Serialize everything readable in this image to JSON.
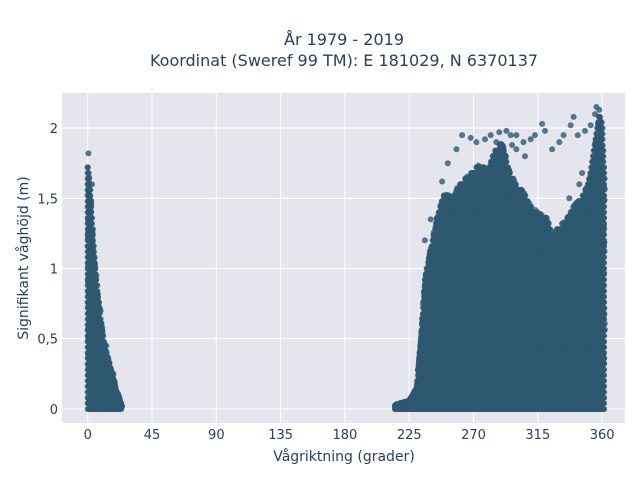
{
  "chart_data": {
    "type": "scatter",
    "title_line1": "År 1979 - 2019",
    "title_line2": "Koordinat (Sweref 99 TM): E 181029, N 6370137",
    "xlabel": "Vågriktning (grader)",
    "ylabel": "Signifikant våghöjd (m)",
    "xlim": [
      -18,
      376
    ],
    "ylim": [
      -0.1,
      2.25
    ],
    "xticks": [
      0,
      45,
      90,
      135,
      180,
      225,
      270,
      315,
      360
    ],
    "xtick_labels": [
      "0",
      "45",
      "90",
      "135",
      "180",
      "225",
      "270",
      "315",
      "360"
    ],
    "yticks": [
      0,
      0.5,
      1,
      1.5,
      2
    ],
    "ytick_labels": [
      "0",
      "0,5",
      "1",
      "1,5",
      "2"
    ],
    "grid": true,
    "marker_color": "#2e5870",
    "plot_bg": "#e5e5ee",
    "clusters": [
      {
        "name": "",
        "x_range": [
          0,
          24
        ],
        "envelope": [
          [
            0,
            1.75
          ],
          [
            2,
            1.55
          ],
          [
            5,
            1.05
          ],
          [
            8,
            0.75
          ],
          [
            12,
            0.45
          ],
          [
            16,
            0.3
          ],
          [
            20,
            0.15
          ],
          [
            24,
            0.02
          ]
        ],
        "outliers": [
          [
            0.5,
            1.82
          ],
          [
            0,
            1.72
          ],
          [
            1,
            1.65
          ],
          [
            3,
            1.6
          ],
          [
            2,
            1.48
          ],
          [
            6,
            0.95
          ],
          [
            9,
            0.7
          ],
          [
            13,
            0.45
          ],
          [
            18,
            0.25
          ]
        ]
      },
      {
        "name": "",
        "x_range": [
          215,
          362
        ],
        "envelope": [
          [
            215,
            0.03
          ],
          [
            225,
            0.06
          ],
          [
            230,
            0.15
          ],
          [
            233,
            0.5
          ],
          [
            236,
            0.95
          ],
          [
            240,
            1.15
          ],
          [
            245,
            1.4
          ],
          [
            250,
            1.55
          ],
          [
            255,
            1.5
          ],
          [
            260,
            1.6
          ],
          [
            265,
            1.65
          ],
          [
            270,
            1.7
          ],
          [
            275,
            1.75
          ],
          [
            280,
            1.7
          ],
          [
            285,
            1.85
          ],
          [
            290,
            1.9
          ],
          [
            295,
            1.7
          ],
          [
            300,
            1.6
          ],
          [
            305,
            1.55
          ],
          [
            310,
            1.45
          ],
          [
            315,
            1.4
          ],
          [
            320,
            1.4
          ],
          [
            325,
            1.25
          ],
          [
            330,
            1.3
          ],
          [
            335,
            1.35
          ],
          [
            340,
            1.45
          ],
          [
            345,
            1.5
          ],
          [
            350,
            1.6
          ],
          [
            355,
            1.9
          ],
          [
            358,
            2.1
          ],
          [
            360,
            2.05
          ],
          [
            362,
            1.6
          ]
        ],
        "outliers": [
          [
            262,
            1.95
          ],
          [
            268,
            1.93
          ],
          [
            272,
            1.9
          ],
          [
            278,
            1.92
          ],
          [
            282,
            1.95
          ],
          [
            288,
            1.97
          ],
          [
            293,
            1.98
          ],
          [
            297,
            1.88
          ],
          [
            300,
            1.95
          ],
          [
            305,
            1.9
          ],
          [
            310,
            1.92
          ],
          [
            313,
            1.95
          ],
          [
            318,
            2.03
          ],
          [
            320,
            1.98
          ],
          [
            325,
            1.85
          ],
          [
            330,
            1.9
          ],
          [
            333,
            1.95
          ],
          [
            338,
            2.02
          ],
          [
            340,
            2.08
          ],
          [
            343,
            1.95
          ],
          [
            348,
            1.98
          ],
          [
            352,
            2.02
          ],
          [
            355,
            2.1
          ],
          [
            356,
            2.15
          ],
          [
            358,
            2.13
          ],
          [
            359,
            2.05
          ],
          [
            252,
            1.75
          ],
          [
            258,
            1.85
          ],
          [
            248,
            1.62
          ],
          [
            240,
            1.35
          ],
          [
            236,
            1.2
          ],
          [
            286,
            1.9
          ],
          [
            296,
            1.95
          ],
          [
            300,
            1.85
          ],
          [
            306,
            1.8
          ],
          [
            337,
            1.5
          ],
          [
            344,
            1.6
          ],
          [
            346,
            1.68
          ]
        ]
      }
    ]
  }
}
